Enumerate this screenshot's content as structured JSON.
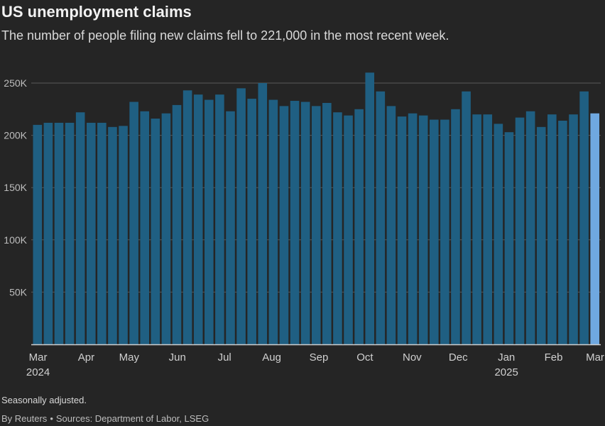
{
  "header": {
    "title": "US unemployment claims",
    "subtitle": "The number of people filing new claims fell to 221,000 in the most recent week."
  },
  "footer": {
    "note": "Seasonally adjusted.",
    "byline": "By Reuters",
    "separator": "•",
    "sources": "Sources: Department of Labor, LSEG"
  },
  "colors": {
    "bar": "#1f5f82",
    "bar_highlight": "#6fa8e0",
    "gridline": "#5a5a5a",
    "axis": "#cfcfcf",
    "tick_text": "#bdbdbd",
    "month_text": "#d0d0d0"
  },
  "chart_data": {
    "type": "bar",
    "title": "US unemployment claims",
    "subtitle": "The number of people filing new claims fell to 221,000 in the most recent week.",
    "xlabel": "",
    "ylabel": "",
    "ylim": [
      0,
      250000
    ],
    "grid": "horizontal",
    "y_ticks": [
      50000,
      100000,
      150000,
      200000,
      250000
    ],
    "y_tick_labels": [
      "50K",
      "100K",
      "150K",
      "200K",
      "250K"
    ],
    "x_tick_labels": [
      "Mar",
      "Apr",
      "May",
      "Jun",
      "Jul",
      "Aug",
      "Sep",
      "Oct",
      "Nov",
      "Dec",
      "Jan",
      "Feb",
      "Mar"
    ],
    "x_year_labels": [
      "2024",
      "2025"
    ],
    "values": [
      210000,
      212000,
      212000,
      212000,
      222000,
      212000,
      212000,
      208000,
      209000,
      232000,
      223000,
      216000,
      221000,
      229000,
      243000,
      239000,
      234000,
      239000,
      223000,
      245000,
      235000,
      250000,
      234000,
      228000,
      233000,
      232000,
      228000,
      231000,
      222000,
      219000,
      225000,
      260000,
      242000,
      228000,
      218000,
      221000,
      219000,
      215000,
      215000,
      225000,
      242000,
      220000,
      220000,
      211000,
      203000,
      217000,
      223000,
      208000,
      220000,
      214000,
      220000,
      242000,
      221000
    ],
    "highlight_last": true
  }
}
